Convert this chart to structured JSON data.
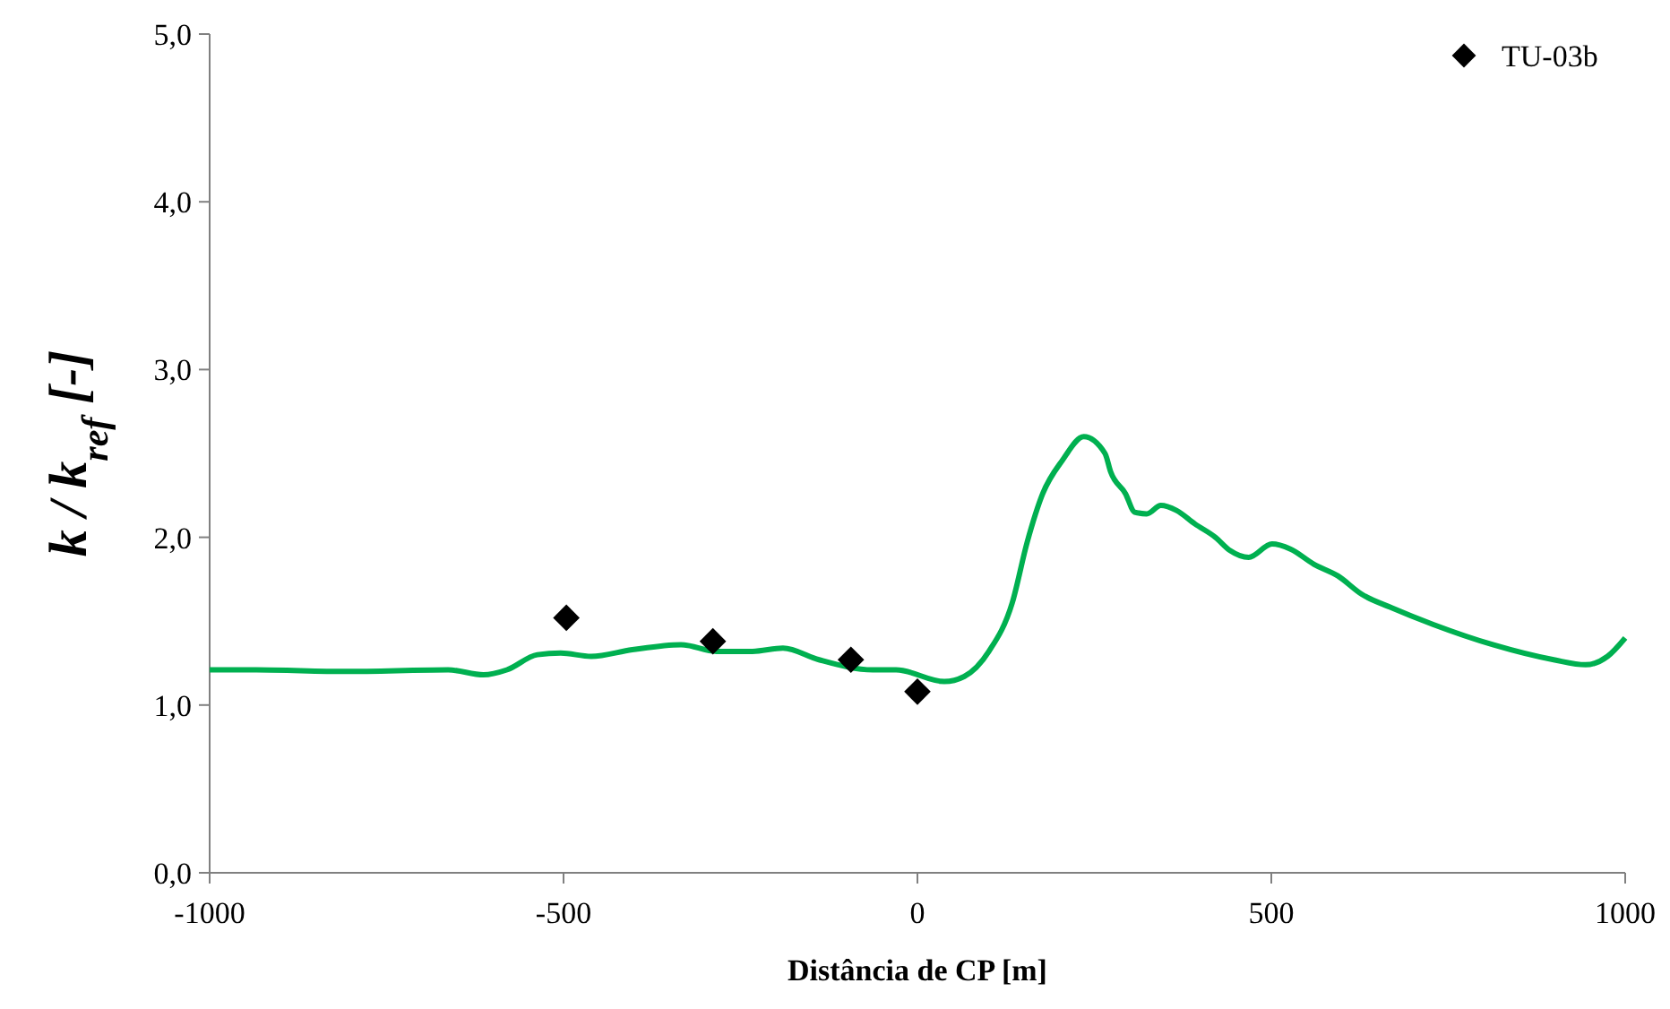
{
  "chart_data": {
    "type": "scatter",
    "xlabel": "Distância de CP [m]",
    "ylabel": "k / k$_{ref}$ [-]",
    "xlim": [
      -1000,
      1000
    ],
    "xticks": [
      -1000,
      -500,
      0,
      500,
      1000
    ],
    "ylim": [
      0,
      5
    ],
    "yticks": [
      {
        "value": 0,
        "label": "0,0"
      },
      {
        "value": 1,
        "label": "1,0"
      },
      {
        "value": 2,
        "label": "2,0"
      },
      {
        "value": 3,
        "label": "3,0"
      },
      {
        "value": 4,
        "label": "4,0"
      },
      {
        "value": 5,
        "label": "5,0"
      }
    ],
    "grid": false,
    "legend": "top right",
    "series": [
      {
        "name": "TU-03b",
        "marker": "diamond",
        "color": "#000000",
        "x": [
          -496,
          -289,
          -94,
          0
        ],
        "values": [
          1.52,
          1.38,
          1.27,
          1.08
        ]
      },
      {
        "type": "line",
        "marker": "none",
        "color": "#00b050",
        "x": [
          -1000,
          -934,
          -808,
          -663,
          -613,
          -580,
          -537,
          -504,
          -461,
          -403,
          -334,
          -284,
          -233,
          -190,
          -139,
          -63,
          -30,
          38,
          66,
          101,
          134,
          155,
          177,
          205,
          235,
          265,
          273,
          294,
          307,
          324,
          344,
          366,
          392,
          421,
          442,
          468,
          501,
          527,
          560,
          594,
          628,
          670,
          729,
          813,
          899,
          944,
          975,
          1000
        ],
        "values": [
          1.21,
          1.21,
          1.2,
          1.21,
          1.18,
          1.21,
          1.3,
          1.31,
          1.29,
          1.33,
          1.36,
          1.32,
          1.32,
          1.34,
          1.27,
          1.21,
          1.21,
          1.14,
          1.17,
          1.32,
          1.61,
          1.97,
          2.26,
          2.46,
          2.6,
          2.5,
          2.39,
          2.26,
          2.15,
          2.14,
          2.19,
          2.16,
          2.08,
          2.0,
          1.92,
          1.88,
          1.96,
          1.93,
          1.84,
          1.77,
          1.66,
          1.58,
          1.48,
          1.36,
          1.27,
          1.24,
          1.29,
          1.4
        ]
      }
    ]
  }
}
